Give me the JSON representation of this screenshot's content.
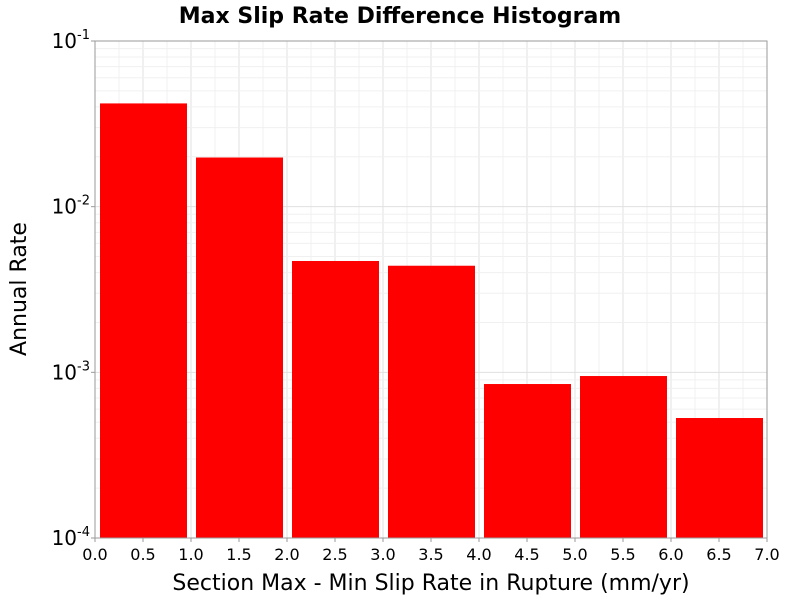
{
  "chart_data": {
    "type": "bar",
    "title": "Max Slip Rate Difference Histogram",
    "xlabel": "Section Max - Min Slip Rate in Rupture (mm/yr)",
    "ylabel": "Annual Rate",
    "xlim": [
      0.0,
      7.0
    ],
    "ylim": [
      0.0001,
      0.1
    ],
    "yscale": "log",
    "grid": true,
    "bar_color": "#ff0000",
    "bins": [
      {
        "x0": 0.0,
        "x1": 1.0,
        "value": 0.042
      },
      {
        "x0": 1.0,
        "x1": 2.0,
        "value": 0.0198
      },
      {
        "x0": 2.0,
        "x1": 3.0,
        "value": 0.0047
      },
      {
        "x0": 3.0,
        "x1": 4.0,
        "value": 0.0044
      },
      {
        "x0": 4.0,
        "x1": 5.0,
        "value": 0.00085
      },
      {
        "x0": 5.0,
        "x1": 6.0,
        "value": 0.00095
      },
      {
        "x0": 6.0,
        "x1": 7.0,
        "value": 0.00053
      }
    ],
    "x_ticks": [
      "0.0",
      "0.5",
      "1.0",
      "1.5",
      "2.0",
      "2.5",
      "3.0",
      "3.5",
      "4.0",
      "4.5",
      "5.0",
      "5.5",
      "6.0",
      "6.5",
      "7.0"
    ],
    "y_ticks": [
      {
        "base": "10",
        "exp": "-1",
        "value": 0.1
      },
      {
        "base": "10",
        "exp": "-2",
        "value": 0.01
      },
      {
        "base": "10",
        "exp": "-3",
        "value": 0.001
      },
      {
        "base": "10",
        "exp": "-4",
        "value": 0.0001
      }
    ]
  }
}
